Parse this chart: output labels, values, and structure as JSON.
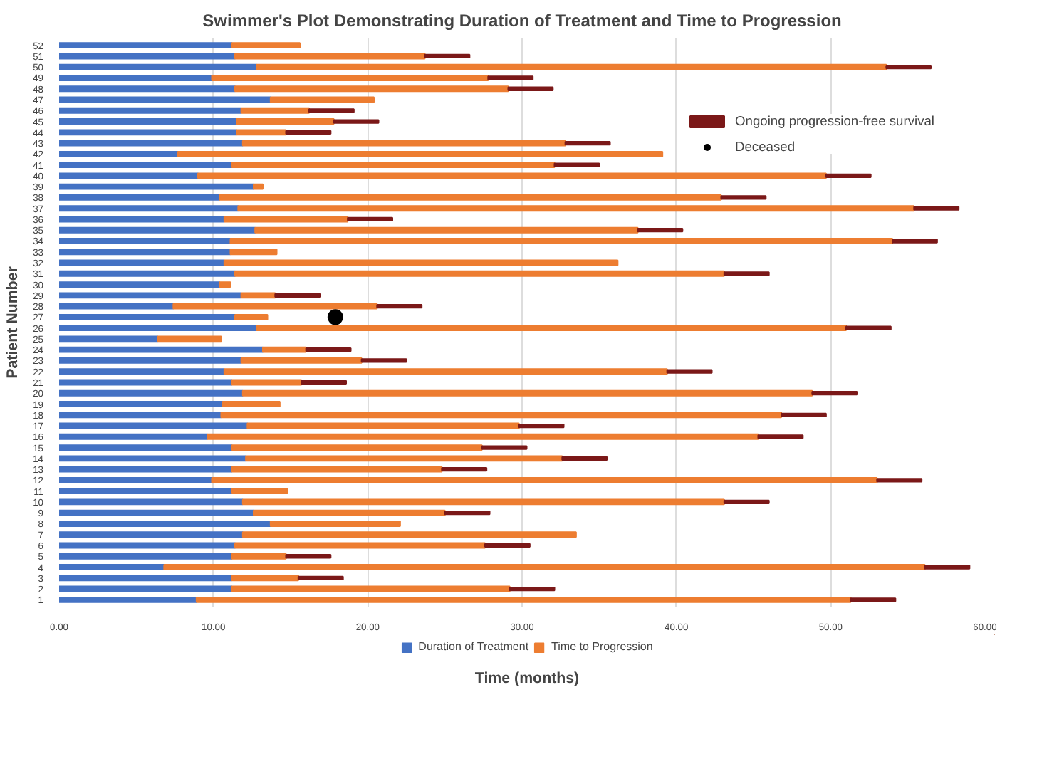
{
  "chart_data": {
    "type": "bar",
    "orientation": "horizontal",
    "stacked": true,
    "title": "Swimmer's Plot Demonstrating Duration of Treatment and Time to Progression",
    "xlabel": "Time (months)",
    "ylabel": "Patient Number",
    "categories": [
      "52",
      "51",
      "50",
      "49",
      "48",
      "47",
      "46",
      "45",
      "44",
      "43",
      "42",
      "41",
      "40",
      "39",
      "38",
      "37",
      "36",
      "35",
      "34",
      "33",
      "32",
      "31",
      "30",
      "29",
      "28",
      "27",
      "26",
      "25",
      "24",
      "23",
      "22",
      "21",
      "20",
      "19",
      "18",
      "17",
      "16",
      "15",
      "14",
      "13",
      "12",
      "11",
      "10",
      "9",
      "8",
      "7",
      "6",
      "5",
      "4",
      "3",
      "2",
      "1"
    ],
    "series": [
      {
        "name": "Duration of Treatment",
        "color": "#4472c4",
        "values": [
          11.2,
          11.4,
          12.8,
          9.9,
          11.4,
          13.7,
          11.8,
          11.5,
          11.5,
          11.9,
          7.7,
          11.2,
          9.0,
          12.6,
          10.4,
          11.6,
          10.7,
          12.7,
          11.1,
          11.1,
          10.7,
          11.4,
          10.4,
          11.8,
          7.4,
          11.4,
          12.8,
          6.4,
          13.2,
          11.8,
          10.7,
          11.2,
          11.9,
          10.6,
          10.5,
          12.2,
          9.6,
          11.2,
          12.1,
          11.2,
          9.9,
          11.2,
          11.9,
          12.6,
          13.7,
          11.9,
          11.4,
          11.2,
          6.8,
          11.2,
          11.2,
          8.9
        ]
      },
      {
        "name": "Time to Progression",
        "color": "#ed7d31",
        "values": [
          4.4,
          12.3,
          40.8,
          17.9,
          17.7,
          6.7,
          4.4,
          6.3,
          3.2,
          20.9,
          31.4,
          20.9,
          40.7,
          0.6,
          32.5,
          43.8,
          8.0,
          24.8,
          42.9,
          3.0,
          25.5,
          31.7,
          0.7,
          2.2,
          13.2,
          2.1,
          38.2,
          4.1,
          2.8,
          7.8,
          28.7,
          4.5,
          36.9,
          3.7,
          36.3,
          17.6,
          35.7,
          16.2,
          20.5,
          13.6,
          43.1,
          3.6,
          31.2,
          12.4,
          8.4,
          21.6,
          16.2,
          3.5,
          49.3,
          4.3,
          18.0,
          42.4
        ]
      },
      {
        "name": "Ongoing progression-free survival",
        "type": "bar",
        "color": "#7b1818",
        "values": [
          null,
          2.9,
          2.9,
          2.9,
          2.9,
          null,
          2.9,
          2.9,
          2.9,
          2.9,
          null,
          2.9,
          2.9,
          null,
          2.9,
          2.9,
          2.9,
          2.9,
          2.9,
          null,
          null,
          2.9,
          null,
          2.9,
          2.9,
          null,
          2.9,
          null,
          2.9,
          2.9,
          2.9,
          2.9,
          2.9,
          null,
          2.9,
          2.9,
          2.9,
          2.9,
          2.9,
          2.9,
          2.9,
          null,
          2.9,
          2.9,
          null,
          null,
          2.9,
          2.9,
          2.9,
          2.9,
          2.9,
          2.9
        ]
      },
      {
        "name": "Deceased",
        "type": "scatter",
        "color": "#000000",
        "values": [
          null,
          null,
          null,
          null,
          null,
          null,
          null,
          null,
          null,
          null,
          null,
          null,
          null,
          null,
          null,
          null,
          null,
          null,
          null,
          null,
          null,
          null,
          null,
          null,
          null,
          17.9,
          null,
          null,
          null,
          null,
          null,
          null,
          null,
          null,
          null,
          null,
          null,
          null,
          null,
          null,
          null,
          null,
          null,
          null,
          null,
          null,
          null,
          null,
          null,
          null,
          null,
          null
        ]
      }
    ],
    "xlim": [
      0,
      60
    ],
    "xticks": [
      {
        "value": 0,
        "label": "0.00"
      },
      {
        "value": 10,
        "label": "10.00"
      },
      {
        "value": 20,
        "label": "20.00"
      },
      {
        "value": 30,
        "label": "30.00"
      },
      {
        "value": 40,
        "label": "40.00"
      },
      {
        "value": 50,
        "label": "50.00"
      },
      {
        "value": 60,
        "label": "60.00"
      }
    ],
    "grid": "x",
    "legend": "bottom"
  }
}
